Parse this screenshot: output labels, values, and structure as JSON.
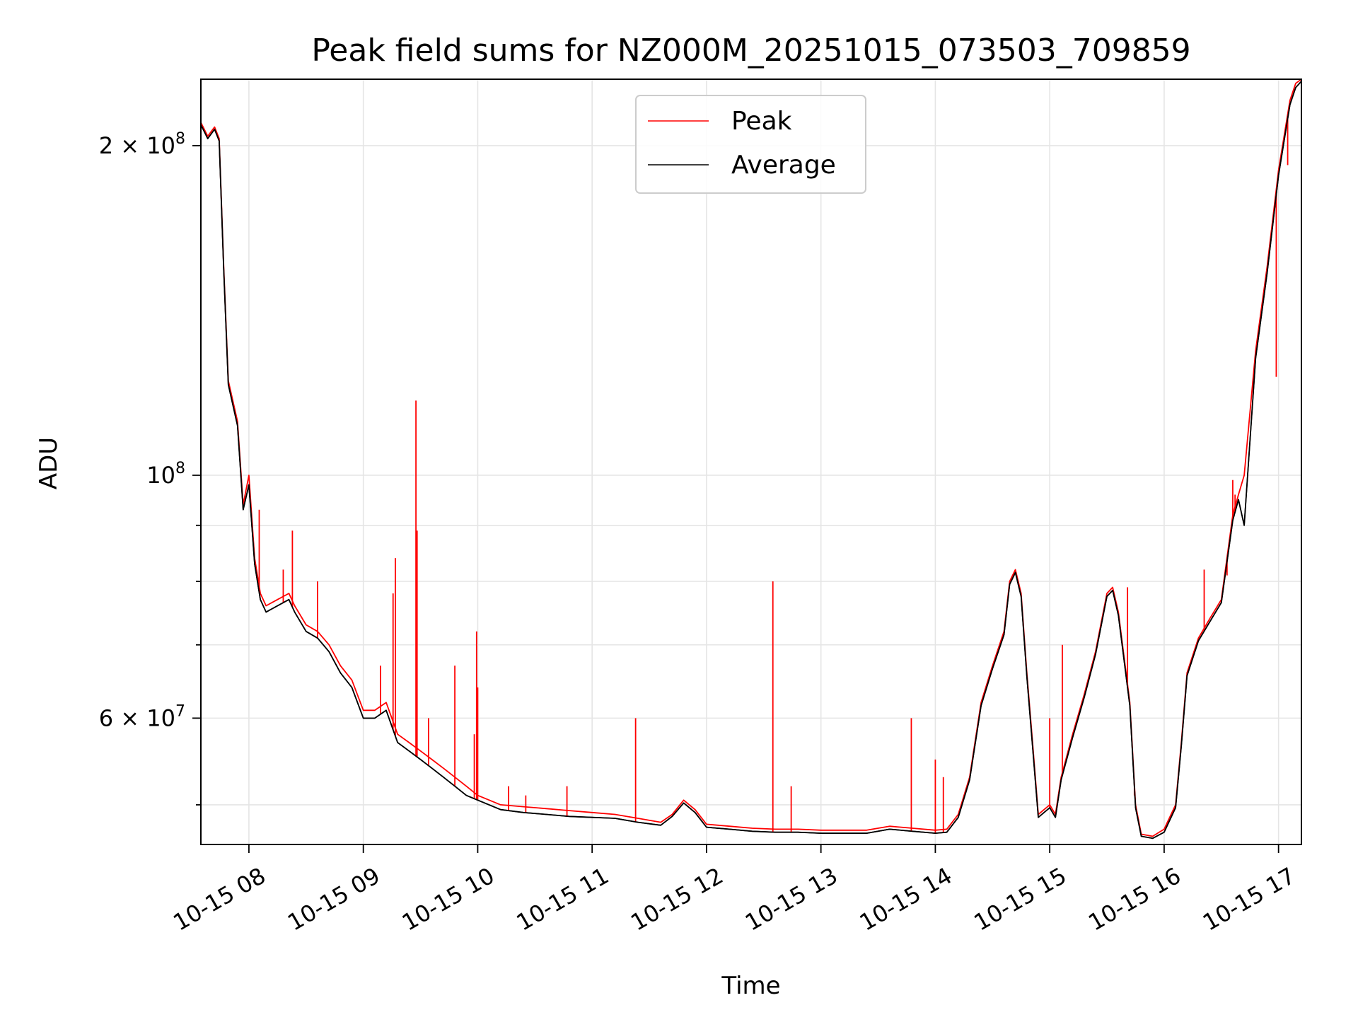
{
  "chart_data": {
    "type": "line",
    "title": "Peak field sums for NZ000M_20251015_073503_709859",
    "xlabel": "Time",
    "ylabel": "ADU",
    "yscale": "log",
    "xlim": [
      7.58,
      17.2
    ],
    "ylim": [
      46000000,
      230000000
    ],
    "grid": true,
    "legend_position": "top-center",
    "x_ticks": [
      {
        "value": 8,
        "label": "10-15 08"
      },
      {
        "value": 9,
        "label": "10-15 09"
      },
      {
        "value": 10,
        "label": "10-15 10"
      },
      {
        "value": 11,
        "label": "10-15 11"
      },
      {
        "value": 12,
        "label": "10-15 12"
      },
      {
        "value": 13,
        "label": "10-15 13"
      },
      {
        "value": 14,
        "label": "10-15 14"
      },
      {
        "value": 15,
        "label": "10-15 15"
      },
      {
        "value": 16,
        "label": "10-15 16"
      },
      {
        "value": 17,
        "label": "10-15 17"
      }
    ],
    "y_major_ticks": [
      {
        "value": 60000000,
        "label_base": "6 × 10",
        "label_exp": "7"
      },
      {
        "value": 100000000,
        "label_base": "10",
        "label_exp": "8"
      },
      {
        "value": 200000000,
        "label_base": "2 × 10",
        "label_exp": "8"
      }
    ],
    "y_minor_ticks": [
      50000000,
      70000000,
      80000000,
      90000000
    ],
    "series": [
      {
        "name": "Peak",
        "color": "#ff0000",
        "x": [
          7.58,
          7.64,
          7.7,
          7.74,
          7.78,
          7.82,
          7.9,
          7.95,
          8.0,
          8.05,
          8.1,
          8.15,
          8.25,
          8.35,
          8.4,
          8.5,
          8.6,
          8.7,
          8.8,
          8.9,
          9.0,
          9.1,
          9.2,
          9.3,
          9.4,
          9.5,
          9.6,
          9.7,
          9.8,
          9.9,
          10.0,
          10.2,
          10.4,
          10.6,
          10.8,
          11.0,
          11.2,
          11.4,
          11.6,
          11.7,
          11.8,
          11.9,
          12.0,
          12.2,
          12.4,
          12.6,
          12.8,
          13.0,
          13.2,
          13.4,
          13.6,
          13.8,
          14.0,
          14.1,
          14.2,
          14.3,
          14.4,
          14.5,
          14.6,
          14.65,
          14.7,
          14.75,
          14.8,
          14.85,
          14.9,
          15.0,
          15.05,
          15.1,
          15.2,
          15.3,
          15.4,
          15.5,
          15.55,
          15.6,
          15.7,
          15.75,
          15.8,
          15.9,
          16.0,
          16.1,
          16.15,
          16.2,
          16.3,
          16.4,
          16.5,
          16.6,
          16.65,
          16.7,
          16.8,
          16.9,
          17.0,
          17.1,
          17.15,
          17.2
        ],
        "values": [
          210000000,
          204000000,
          208000000,
          203000000,
          155000000,
          122000000,
          112000000,
          94000000,
          100000000,
          84000000,
          78000000,
          76000000,
          77000000,
          78000000,
          76000000,
          73000000,
          72000000,
          70000000,
          67000000,
          65000000,
          61000000,
          61000000,
          62000000,
          58000000,
          57000000,
          56000000,
          55000000,
          54000000,
          53000000,
          52000000,
          51000000,
          50000000,
          49800000,
          49600000,
          49400000,
          49200000,
          49000000,
          48600000,
          48200000,
          49000000,
          50500000,
          49500000,
          48000000,
          47800000,
          47600000,
          47500000,
          47500000,
          47400000,
          47400000,
          47400000,
          47800000,
          47600000,
          47400000,
          47500000,
          49000000,
          53000000,
          62000000,
          67000000,
          72000000,
          80000000,
          82000000,
          78000000,
          66000000,
          57000000,
          49000000,
          50000000,
          49000000,
          53000000,
          58000000,
          63000000,
          69000000,
          78000000,
          79000000,
          75000000,
          62000000,
          50000000,
          47000000,
          46800000,
          47500000,
          50000000,
          57000000,
          66000000,
          71000000,
          74000000,
          77000000,
          92000000,
          96000000,
          100000000,
          130000000,
          155000000,
          190000000,
          220000000,
          228000000,
          230000000
        ]
      },
      {
        "name": "Average",
        "color": "#000000",
        "x": [
          7.58,
          7.64,
          7.7,
          7.74,
          7.78,
          7.82,
          7.9,
          7.95,
          8.0,
          8.05,
          8.1,
          8.15,
          8.25,
          8.35,
          8.4,
          8.5,
          8.6,
          8.7,
          8.8,
          8.9,
          9.0,
          9.1,
          9.2,
          9.3,
          9.4,
          9.5,
          9.6,
          9.7,
          9.8,
          9.9,
          10.0,
          10.2,
          10.4,
          10.6,
          10.8,
          11.0,
          11.2,
          11.4,
          11.6,
          11.7,
          11.8,
          11.9,
          12.0,
          12.2,
          12.4,
          12.6,
          12.8,
          13.0,
          13.2,
          13.4,
          13.6,
          13.8,
          14.0,
          14.1,
          14.2,
          14.3,
          14.4,
          14.5,
          14.6,
          14.65,
          14.7,
          14.75,
          14.8,
          14.85,
          14.9,
          15.0,
          15.05,
          15.1,
          15.2,
          15.3,
          15.4,
          15.5,
          15.55,
          15.6,
          15.7,
          15.75,
          15.8,
          15.9,
          16.0,
          16.1,
          16.15,
          16.2,
          16.3,
          16.4,
          16.5,
          16.6,
          16.65,
          16.7,
          16.8,
          16.9,
          17.0,
          17.1,
          17.15,
          17.2
        ],
        "values": [
          209000000,
          203000000,
          207000000,
          202000000,
          154000000,
          121000000,
          111000000,
          93000000,
          98000000,
          83000000,
          77000000,
          75000000,
          76000000,
          77000000,
          75000000,
          72000000,
          71000000,
          69000000,
          66000000,
          64000000,
          60000000,
          60000000,
          61000000,
          57000000,
          56000000,
          55000000,
          54000000,
          53000000,
          52000000,
          51000000,
          50500000,
          49500000,
          49200000,
          49000000,
          48800000,
          48700000,
          48600000,
          48200000,
          47900000,
          48800000,
          50200000,
          49200000,
          47700000,
          47500000,
          47300000,
          47200000,
          47200000,
          47100000,
          47100000,
          47100000,
          47500000,
          47300000,
          47100000,
          47200000,
          48700000,
          52700000,
          61600000,
          66600000,
          71500000,
          79500000,
          81500000,
          77500000,
          65500000,
          56500000,
          48700000,
          49700000,
          48700000,
          52700000,
          57600000,
          62600000,
          68600000,
          77500000,
          78500000,
          74500000,
          61600000,
          49700000,
          46800000,
          46600000,
          47200000,
          49700000,
          56600000,
          65600000,
          70600000,
          73500000,
          76500000,
          91000000,
          95000000,
          90000000,
          128000000,
          153000000,
          188000000,
          218000000,
          226000000,
          229000000
        ]
      }
    ],
    "spikes": [
      {
        "x": 8.09,
        "value": 93000000
      },
      {
        "x": 8.3,
        "value": 82000000
      },
      {
        "x": 8.38,
        "value": 89000000
      },
      {
        "x": 8.6,
        "value": 80000000
      },
      {
        "x": 9.15,
        "value": 67000000
      },
      {
        "x": 9.26,
        "value": 78000000
      },
      {
        "x": 9.28,
        "value": 84000000
      },
      {
        "x": 9.46,
        "value": 117000000
      },
      {
        "x": 9.47,
        "value": 89000000
      },
      {
        "x": 9.57,
        "value": 60000000
      },
      {
        "x": 9.8,
        "value": 67000000
      },
      {
        "x": 9.97,
        "value": 58000000
      },
      {
        "x": 9.99,
        "value": 72000000
      },
      {
        "x": 10.0,
        "value": 64000000
      },
      {
        "x": 10.27,
        "value": 52000000
      },
      {
        "x": 10.42,
        "value": 51000000
      },
      {
        "x": 10.78,
        "value": 52000000
      },
      {
        "x": 11.38,
        "value": 60000000
      },
      {
        "x": 12.58,
        "value": 80000000
      },
      {
        "x": 12.74,
        "value": 52000000
      },
      {
        "x": 13.79,
        "value": 60000000
      },
      {
        "x": 14.0,
        "value": 55000000
      },
      {
        "x": 14.07,
        "value": 53000000
      },
      {
        "x": 15.0,
        "value": 60000000
      },
      {
        "x": 15.11,
        "value": 70000000
      },
      {
        "x": 15.68,
        "value": 79000000
      },
      {
        "x": 15.74,
        "value": 51000000
      },
      {
        "x": 16.35,
        "value": 82000000
      },
      {
        "x": 16.55,
        "value": 81000000
      },
      {
        "x": 16.6,
        "value": 99000000
      },
      {
        "x": 16.62,
        "value": 96000000
      },
      {
        "x": 16.98,
        "value": 123000000
      },
      {
        "x": 17.08,
        "value": 192000000
      }
    ]
  }
}
